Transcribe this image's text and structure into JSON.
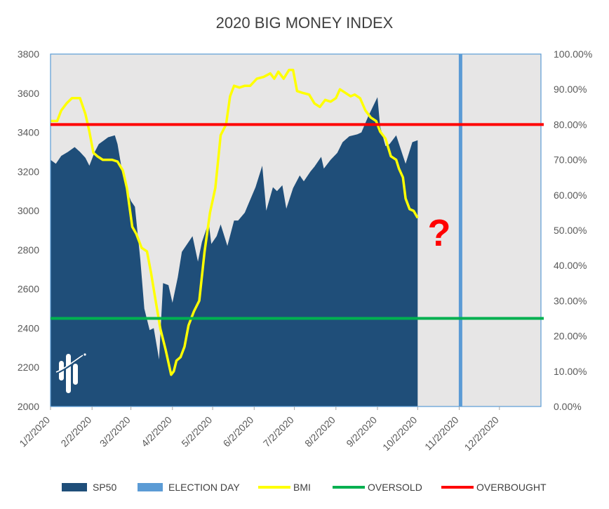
{
  "chart_data": {
    "type": "area",
    "title": "2020 BIG MONEY INDEX",
    "x_tick_labels": [
      "1/2/2020",
      "2/2/2020",
      "3/2/2020",
      "4/2/2020",
      "5/2/2020",
      "6/2/2020",
      "7/2/2020",
      "8/2/2020",
      "9/2/2020",
      "10/2/2020",
      "11/2/2020",
      "12/2/2020"
    ],
    "y_left_ticks": [
      "2000",
      "2200",
      "2400",
      "2600",
      "2800",
      "3000",
      "3200",
      "3400",
      "3600",
      "3800"
    ],
    "y_right_ticks": [
      "0.00%",
      "10.00%",
      "20.00%",
      "30.00%",
      "40.00%",
      "50.00%",
      "60.00%",
      "70.00%",
      "80.00%",
      "90.00%",
      "100.00%"
    ],
    "y_left_range": [
      2000,
      3800
    ],
    "y_right_range": [
      0,
      100
    ],
    "x_range": [
      "2020-01-02",
      "2021-01-02"
    ],
    "annotation": "?",
    "legend_position": "bottom",
    "colors": {
      "sp50": "#1f4e79",
      "election_day": "#5b9bd5",
      "bmi": "#ffff00",
      "oversold": "#00b050",
      "overbought": "#ff0000",
      "plot_background": "#e7e6e6",
      "annotation": "#ff0000"
    },
    "series": [
      {
        "name": "SP50",
        "kind": "area",
        "axis": "left",
        "points": [
          [
            "2020-01-02",
            3260
          ],
          [
            "2020-01-06",
            3240
          ],
          [
            "2020-01-10",
            3280
          ],
          [
            "2020-01-15",
            3300
          ],
          [
            "2020-01-20",
            3325
          ],
          [
            "2020-01-24",
            3300
          ],
          [
            "2020-01-28",
            3270
          ],
          [
            "2020-01-31",
            3230
          ],
          [
            "2020-02-04",
            3300
          ],
          [
            "2020-02-07",
            3340
          ],
          [
            "2020-02-11",
            3360
          ],
          [
            "2020-02-14",
            3375
          ],
          [
            "2020-02-19",
            3385
          ],
          [
            "2020-02-21",
            3340
          ],
          [
            "2020-02-24",
            3220
          ],
          [
            "2020-02-27",
            3120
          ],
          [
            "2020-03-02",
            3050
          ],
          [
            "2020-03-05",
            3020
          ],
          [
            "2020-03-09",
            2750
          ],
          [
            "2020-03-12",
            2500
          ],
          [
            "2020-03-16",
            2390
          ],
          [
            "2020-03-19",
            2400
          ],
          [
            "2020-03-23",
            2240
          ],
          [
            "2020-03-26",
            2630
          ],
          [
            "2020-03-30",
            2620
          ],
          [
            "2020-04-02",
            2530
          ],
          [
            "2020-04-06",
            2660
          ],
          [
            "2020-04-09",
            2790
          ],
          [
            "2020-04-14",
            2840
          ],
          [
            "2020-04-17",
            2870
          ],
          [
            "2020-04-21",
            2740
          ],
          [
            "2020-04-24",
            2840
          ],
          [
            "2020-04-29",
            2940
          ],
          [
            "2020-05-01",
            2830
          ],
          [
            "2020-05-05",
            2870
          ],
          [
            "2020-05-08",
            2930
          ],
          [
            "2020-05-13",
            2820
          ],
          [
            "2020-05-18",
            2950
          ],
          [
            "2020-05-21",
            2950
          ],
          [
            "2020-05-26",
            2990
          ],
          [
            "2020-05-29",
            3040
          ],
          [
            "2020-06-03",
            3120
          ],
          [
            "2020-06-08",
            3230
          ],
          [
            "2020-06-11",
            3000
          ],
          [
            "2020-06-16",
            3120
          ],
          [
            "2020-06-19",
            3100
          ],
          [
            "2020-06-23",
            3130
          ],
          [
            "2020-06-26",
            3010
          ],
          [
            "2020-07-01",
            3115
          ],
          [
            "2020-07-06",
            3180
          ],
          [
            "2020-07-09",
            3150
          ],
          [
            "2020-07-14",
            3200
          ],
          [
            "2020-07-17",
            3225
          ],
          [
            "2020-07-22",
            3275
          ],
          [
            "2020-07-24",
            3215
          ],
          [
            "2020-07-29",
            3260
          ],
          [
            "2020-08-03",
            3295
          ],
          [
            "2020-08-07",
            3350
          ],
          [
            "2020-08-12",
            3380
          ],
          [
            "2020-08-18",
            3390
          ],
          [
            "2020-08-21",
            3400
          ],
          [
            "2020-08-26",
            3480
          ],
          [
            "2020-09-02",
            3580
          ],
          [
            "2020-09-04",
            3430
          ],
          [
            "2020-09-08",
            3330
          ],
          [
            "2020-09-11",
            3340
          ],
          [
            "2020-09-16",
            3385
          ],
          [
            "2020-09-21",
            3280
          ],
          [
            "2020-09-23",
            3240
          ],
          [
            "2020-09-28",
            3350
          ],
          [
            "2020-10-02",
            3360
          ]
        ]
      },
      {
        "name": "BMI",
        "kind": "line",
        "axis": "right",
        "points": [
          [
            "2020-01-02",
            81
          ],
          [
            "2020-01-07",
            81
          ],
          [
            "2020-01-10",
            84
          ],
          [
            "2020-01-14",
            86
          ],
          [
            "2020-01-18",
            87.5
          ],
          [
            "2020-01-24",
            87.5
          ],
          [
            "2020-01-28",
            83
          ],
          [
            "2020-01-31",
            78
          ],
          [
            "2020-02-03",
            72
          ],
          [
            "2020-02-06",
            71
          ],
          [
            "2020-02-10",
            70
          ],
          [
            "2020-02-13",
            70
          ],
          [
            "2020-02-17",
            70
          ],
          [
            "2020-02-21",
            69.5
          ],
          [
            "2020-02-25",
            67
          ],
          [
            "2020-02-28",
            62
          ],
          [
            "2020-03-03",
            51
          ],
          [
            "2020-03-06",
            49
          ],
          [
            "2020-03-10",
            45
          ],
          [
            "2020-03-14",
            44
          ],
          [
            "2020-03-17",
            38
          ],
          [
            "2020-03-20",
            31
          ],
          [
            "2020-03-24",
            22
          ],
          [
            "2020-03-28",
            16
          ],
          [
            "2020-04-01",
            9
          ],
          [
            "2020-04-03",
            10
          ],
          [
            "2020-04-05",
            13
          ],
          [
            "2020-04-08",
            14
          ],
          [
            "2020-04-11",
            17
          ],
          [
            "2020-04-14",
            23
          ],
          [
            "2020-04-18",
            27
          ],
          [
            "2020-04-22",
            30
          ],
          [
            "2020-04-26",
            44
          ],
          [
            "2020-04-30",
            55
          ],
          [
            "2020-05-04",
            62
          ],
          [
            "2020-05-08",
            77
          ],
          [
            "2020-05-12",
            80
          ],
          [
            "2020-05-15",
            88
          ],
          [
            "2020-05-18",
            91
          ],
          [
            "2020-05-22",
            90.5
          ],
          [
            "2020-05-26",
            91
          ],
          [
            "2020-05-30",
            91
          ],
          [
            "2020-06-04",
            93
          ],
          [
            "2020-06-09",
            93.5
          ],
          [
            "2020-06-14",
            94.5
          ],
          [
            "2020-06-17",
            93
          ],
          [
            "2020-06-20",
            95
          ],
          [
            "2020-06-24",
            93
          ],
          [
            "2020-06-28",
            95.5
          ],
          [
            "2020-07-01",
            95.5
          ],
          [
            "2020-07-04",
            89.5
          ],
          [
            "2020-07-08",
            89
          ],
          [
            "2020-07-13",
            88.5
          ],
          [
            "2020-07-17",
            86
          ],
          [
            "2020-07-21",
            85
          ],
          [
            "2020-07-25",
            87
          ],
          [
            "2020-07-29",
            86.5
          ],
          [
            "2020-08-02",
            87.5
          ],
          [
            "2020-08-05",
            90
          ],
          [
            "2020-08-09",
            89
          ],
          [
            "2020-08-13",
            88
          ],
          [
            "2020-08-16",
            88.5
          ],
          [
            "2020-08-20",
            87.5
          ],
          [
            "2020-08-24",
            84
          ],
          [
            "2020-08-28",
            82
          ],
          [
            "2020-09-01",
            81
          ],
          [
            "2020-09-04",
            78
          ],
          [
            "2020-09-08",
            76
          ],
          [
            "2020-09-12",
            71
          ],
          [
            "2020-09-16",
            70
          ],
          [
            "2020-09-18",
            67.5
          ],
          [
            "2020-09-21",
            65
          ],
          [
            "2020-09-23",
            59
          ],
          [
            "2020-09-26",
            56
          ],
          [
            "2020-09-29",
            55.5
          ],
          [
            "2020-10-02",
            53.5
          ]
        ]
      },
      {
        "name": "OVERSOLD",
        "kind": "hline",
        "axis": "right",
        "value": 25
      },
      {
        "name": "OVERBOUGHT",
        "kind": "hline",
        "axis": "right",
        "value": 80
      },
      {
        "name": "ELECTION DAY",
        "kind": "vline",
        "date": "2020-11-03"
      }
    ]
  }
}
